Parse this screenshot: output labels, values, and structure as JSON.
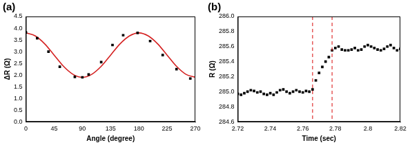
{
  "chart_data": [
    {
      "type": "scatter",
      "title": "(a)",
      "x_label": "Angle (degree)",
      "y_label": "ΔR (Ω)",
      "xlim": [
        0,
        270
      ],
      "xticks": [
        0,
        45,
        90,
        135,
        180,
        225,
        270
      ],
      "ylim": [
        0,
        4.5
      ],
      "yticks": [
        {
          "value": 0,
          "label": "0.0"
        },
        0.5,
        {
          "value": 1,
          "label": "1.0"
        },
        1.5,
        {
          "value": 2,
          "label": "2.0"
        },
        2.5,
        {
          "value": 3,
          "label": "3.0"
        },
        3.5,
        {
          "value": 4,
          "label": "4.0"
        },
        4.5
      ],
      "grid": false,
      "series": [
        {
          "type": "scatter",
          "marker": "square",
          "color": "#000000",
          "x": [
            0,
            18,
            36,
            54,
            78,
            90,
            100,
            120,
            138,
            155,
            178,
            198,
            218,
            240,
            262
          ],
          "values": [
            3.82,
            3.57,
            3.0,
            2.35,
            1.92,
            1.9,
            2.02,
            2.55,
            3.28,
            3.7,
            3.8,
            3.45,
            2.85,
            2.25,
            1.85
          ]
        },
        {
          "type": "line",
          "line_style": "solid",
          "color": "#d42020",
          "x": [
            0,
            15,
            30,
            45,
            60,
            75,
            90,
            105,
            120,
            135,
            150,
            165,
            180,
            195,
            210,
            225,
            240,
            255,
            270
          ],
          "values": [
            3.8,
            3.67,
            3.33,
            2.85,
            2.37,
            2.03,
            1.9,
            2.03,
            2.37,
            2.85,
            3.33,
            3.67,
            3.8,
            3.67,
            3.33,
            2.85,
            2.37,
            2.03,
            1.9
          ]
        }
      ]
    },
    {
      "type": "scatter",
      "title": "(b)",
      "x_label": "Time (sec)",
      "y_label": "R (Ω)",
      "xlim": [
        2.72,
        2.82
      ],
      "xticks": [
        2.72,
        2.74,
        2.76,
        2.78,
        2.8,
        2.82
      ],
      "ylim": [
        284.6,
        286.0
      ],
      "yticks": [
        284.6,
        284.8,
        {
          "value": 285,
          "label": "285.0"
        },
        285.2,
        285.4,
        285.6,
        285.8,
        {
          "value": 286,
          "label": "286.0"
        }
      ],
      "grid": false,
      "vlines": {
        "x": [
          2.766,
          2.778
        ],
        "color": "#e03030",
        "line_style": "dashed"
      },
      "series": [
        {
          "type": "scatter",
          "marker": "square",
          "color": "#000000",
          "x": [
            2.72,
            2.722,
            2.724,
            2.726,
            2.728,
            2.73,
            2.732,
            2.734,
            2.736,
            2.738,
            2.74,
            2.742,
            2.744,
            2.746,
            2.748,
            2.75,
            2.752,
            2.754,
            2.756,
            2.758,
            2.76,
            2.762,
            2.764,
            2.766,
            2.768,
            2.77,
            2.772,
            2.774,
            2.776,
            2.778,
            2.78,
            2.782,
            2.784,
            2.786,
            2.788,
            2.79,
            2.792,
            2.794,
            2.796,
            2.798,
            2.8,
            2.802,
            2.804,
            2.806,
            2.808,
            2.81,
            2.812,
            2.814,
            2.816,
            2.818,
            2.82
          ],
          "values": [
            284.97,
            284.96,
            284.98,
            285.0,
            285.02,
            285.01,
            284.99,
            285.0,
            284.97,
            284.96,
            284.98,
            284.96,
            284.99,
            285.02,
            285.03,
            285.0,
            284.98,
            285.0,
            285.02,
            285.0,
            284.99,
            285.01,
            285.0,
            285.03,
            285.15,
            285.25,
            285.33,
            285.4,
            285.46,
            285.55,
            285.58,
            285.6,
            285.56,
            285.55,
            285.55,
            285.56,
            285.58,
            285.55,
            285.56,
            285.6,
            285.62,
            285.6,
            285.58,
            285.56,
            285.55,
            285.57,
            285.6,
            285.62,
            285.58,
            285.55,
            285.57
          ]
        }
      ]
    }
  ]
}
